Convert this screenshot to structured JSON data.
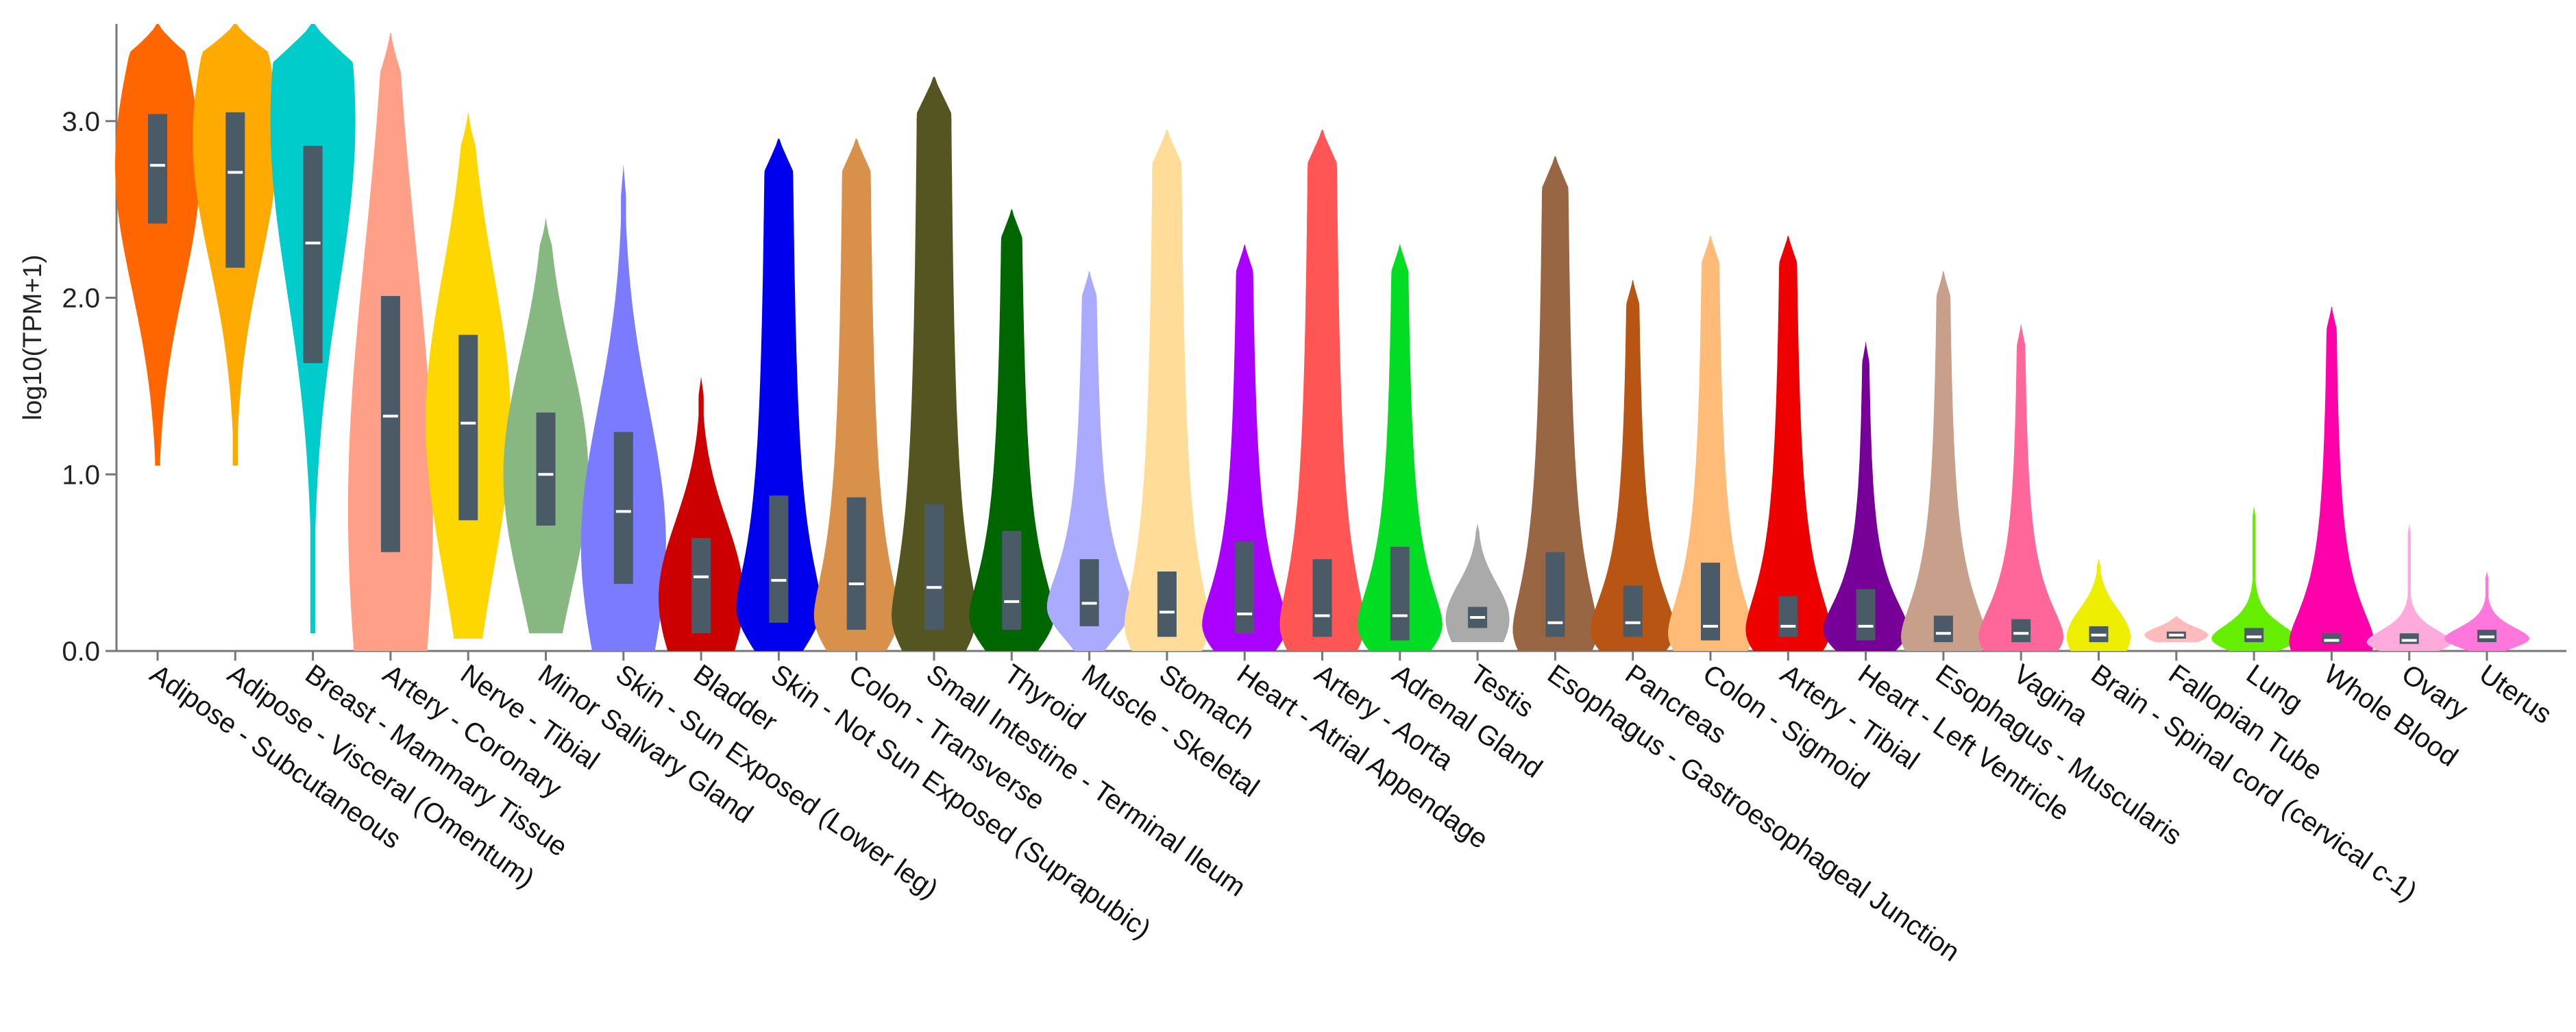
{
  "chart_data": {
    "type": "violin",
    "title": "",
    "xlabel": "",
    "ylabel": "log10(TPM+1)",
    "ylim": [
      0,
      3.55
    ],
    "yticks": [
      "0.0",
      "1.0",
      "2.0",
      "3.0"
    ],
    "grid": false,
    "legend": "none",
    "box_color": "#4a5a66",
    "median_color": "#ffffff",
    "tissues": [
      {
        "name": "Adipose - Subcutaneous",
        "color": "#ff6600",
        "min": 1.05,
        "q1": 2.42,
        "median": 2.75,
        "q3": 3.04,
        "max": 3.55,
        "peak": 2.75,
        "shape": "normal"
      },
      {
        "name": "Adipose - Visceral (Omentum)",
        "color": "#ffaa00",
        "min": 1.05,
        "q1": 2.17,
        "median": 2.71,
        "q3": 3.05,
        "max": 3.55,
        "peak": 2.9,
        "shape": "normal"
      },
      {
        "name": "Breast - Mammary Tissue",
        "color": "#00cccc",
        "min": 0.1,
        "q1": 1.63,
        "median": 2.31,
        "q3": 2.86,
        "max": 3.55,
        "peak": 3.0,
        "shape": "normal"
      },
      {
        "name": "Artery - Coronary",
        "color": "#ff9f87",
        "min": 0.0,
        "q1": 0.56,
        "median": 1.33,
        "q3": 2.01,
        "max": 3.5,
        "peak": 0.8,
        "shape": "wide"
      },
      {
        "name": "Nerve - Tibial",
        "color": "#ffd700",
        "min": 0.07,
        "q1": 0.74,
        "median": 1.29,
        "q3": 1.79,
        "max": 3.05,
        "peak": 1.3,
        "shape": "normal"
      },
      {
        "name": "Minor Salivary Gland",
        "color": "#88b882",
        "min": 0.1,
        "q1": 0.71,
        "median": 1.0,
        "q3": 1.35,
        "max": 2.45,
        "peak": 1.0,
        "shape": "normal"
      },
      {
        "name": "Skin - Sun Exposed (Lower leg)",
        "color": "#7b7bff",
        "min": 0.0,
        "q1": 0.38,
        "median": 0.79,
        "q3": 1.24,
        "max": 2.75,
        "peak": 0.6,
        "shape": "normal"
      },
      {
        "name": "Bladder",
        "color": "#cc0000",
        "min": 0.0,
        "q1": 0.1,
        "median": 0.42,
        "q3": 0.64,
        "max": 1.55,
        "peak": 0.3,
        "shape": "normal"
      },
      {
        "name": "Skin - Not Sun Exposed (Suprapubic)",
        "color": "#0000ee",
        "min": 0.0,
        "q1": 0.16,
        "median": 0.4,
        "q3": 0.88,
        "max": 2.9,
        "peak": 0.25,
        "shape": "skew"
      },
      {
        "name": "Colon - Transverse",
        "color": "#d9904a",
        "min": 0.0,
        "q1": 0.12,
        "median": 0.38,
        "q3": 0.87,
        "max": 2.9,
        "peak": 0.2,
        "shape": "skew"
      },
      {
        "name": "Small Intestine - Terminal Ileum",
        "color": "#555522",
        "min": 0.0,
        "q1": 0.12,
        "median": 0.36,
        "q3": 0.83,
        "max": 3.25,
        "peak": 0.2,
        "shape": "skew"
      },
      {
        "name": "Thyroid",
        "color": "#006600",
        "min": 0.0,
        "q1": 0.12,
        "median": 0.28,
        "q3": 0.68,
        "max": 2.5,
        "peak": 0.2,
        "shape": "skew"
      },
      {
        "name": "Muscle - Skeletal",
        "color": "#aaaaff",
        "min": 0.0,
        "q1": 0.14,
        "median": 0.27,
        "q3": 0.52,
        "max": 2.15,
        "peak": 0.25,
        "shape": "skew"
      },
      {
        "name": "Stomach",
        "color": "#ffdd99",
        "min": 0.0,
        "q1": 0.08,
        "median": 0.22,
        "q3": 0.45,
        "max": 2.95,
        "peak": 0.15,
        "shape": "skew"
      },
      {
        "name": "Heart - Atrial Appendage",
        "color": "#aa00ff",
        "min": 0.0,
        "q1": 0.1,
        "median": 0.21,
        "q3": 0.62,
        "max": 2.3,
        "peak": 0.15,
        "shape": "skew"
      },
      {
        "name": "Artery - Aorta",
        "color": "#ff5555",
        "min": 0.0,
        "q1": 0.08,
        "median": 0.2,
        "q3": 0.52,
        "max": 2.95,
        "peak": 0.15,
        "shape": "skew"
      },
      {
        "name": "Adrenal Gland",
        "color": "#00dd22",
        "min": 0.0,
        "q1": 0.06,
        "median": 0.2,
        "q3": 0.59,
        "max": 2.3,
        "peak": 0.15,
        "shape": "skew"
      },
      {
        "name": "Testis",
        "color": "#aaaaaa",
        "min": 0.05,
        "q1": 0.13,
        "median": 0.19,
        "q3": 0.25,
        "max": 0.72,
        "peak": 0.18,
        "shape": "narrow"
      },
      {
        "name": "Esophagus - Gastroesophageal Junction",
        "color": "#996644",
        "min": 0.0,
        "q1": 0.08,
        "median": 0.16,
        "q3": 0.56,
        "max": 2.8,
        "peak": 0.12,
        "shape": "skew"
      },
      {
        "name": "Pancreas",
        "color": "#b85514",
        "min": 0.0,
        "q1": 0.08,
        "median": 0.16,
        "q3": 0.37,
        "max": 2.1,
        "peak": 0.12,
        "shape": "skew"
      },
      {
        "name": "Colon - Sigmoid",
        "color": "#ffbb77",
        "min": 0.0,
        "q1": 0.06,
        "median": 0.14,
        "q3": 0.5,
        "max": 2.35,
        "peak": 0.1,
        "shape": "skew"
      },
      {
        "name": "Artery - Tibial",
        "color": "#ee0000",
        "min": 0.0,
        "q1": 0.08,
        "median": 0.14,
        "q3": 0.31,
        "max": 2.35,
        "peak": 0.12,
        "shape": "skew"
      },
      {
        "name": "Heart - Left Ventricle",
        "color": "#770099",
        "min": 0.0,
        "q1": 0.06,
        "median": 0.14,
        "q3": 0.35,
        "max": 1.75,
        "peak": 0.12,
        "shape": "skew"
      },
      {
        "name": "Esophagus - Muscularis",
        "color": "#c89f8a",
        "min": 0.0,
        "q1": 0.05,
        "median": 0.1,
        "q3": 0.2,
        "max": 2.15,
        "peak": 0.08,
        "shape": "skew"
      },
      {
        "name": "Vagina",
        "color": "#ff6699",
        "min": 0.0,
        "q1": 0.05,
        "median": 0.1,
        "q3": 0.18,
        "max": 1.85,
        "peak": 0.08,
        "shape": "skew"
      },
      {
        "name": "Brain - Spinal cord (cervical c-1)",
        "color": "#eeee00",
        "min": 0.0,
        "q1": 0.05,
        "median": 0.09,
        "q3": 0.14,
        "max": 0.52,
        "peak": 0.08,
        "shape": "narrow"
      },
      {
        "name": "Fallopian Tube",
        "color": "#ffbbbb",
        "min": 0.05,
        "q1": 0.07,
        "median": 0.09,
        "q3": 0.11,
        "max": 0.2,
        "peak": 0.09,
        "shape": "narrow"
      },
      {
        "name": "Lung",
        "color": "#66ee00",
        "min": 0.0,
        "q1": 0.05,
        "median": 0.08,
        "q3": 0.13,
        "max": 0.82,
        "peak": 0.07,
        "shape": "skew"
      },
      {
        "name": "Whole Blood",
        "color": "#ff00aa",
        "min": 0.0,
        "q1": 0.04,
        "median": 0.06,
        "q3": 0.1,
        "max": 1.95,
        "peak": 0.05,
        "shape": "skew"
      },
      {
        "name": "Ovary",
        "color": "#ffaadd",
        "min": 0.0,
        "q1": 0.04,
        "median": 0.06,
        "q3": 0.1,
        "max": 0.72,
        "peak": 0.05,
        "shape": "skew"
      },
      {
        "name": "Uterus",
        "color": "#ff77dd",
        "min": 0.0,
        "q1": 0.05,
        "median": 0.08,
        "q3": 0.12,
        "max": 0.45,
        "peak": 0.07,
        "shape": "skew"
      }
    ]
  }
}
